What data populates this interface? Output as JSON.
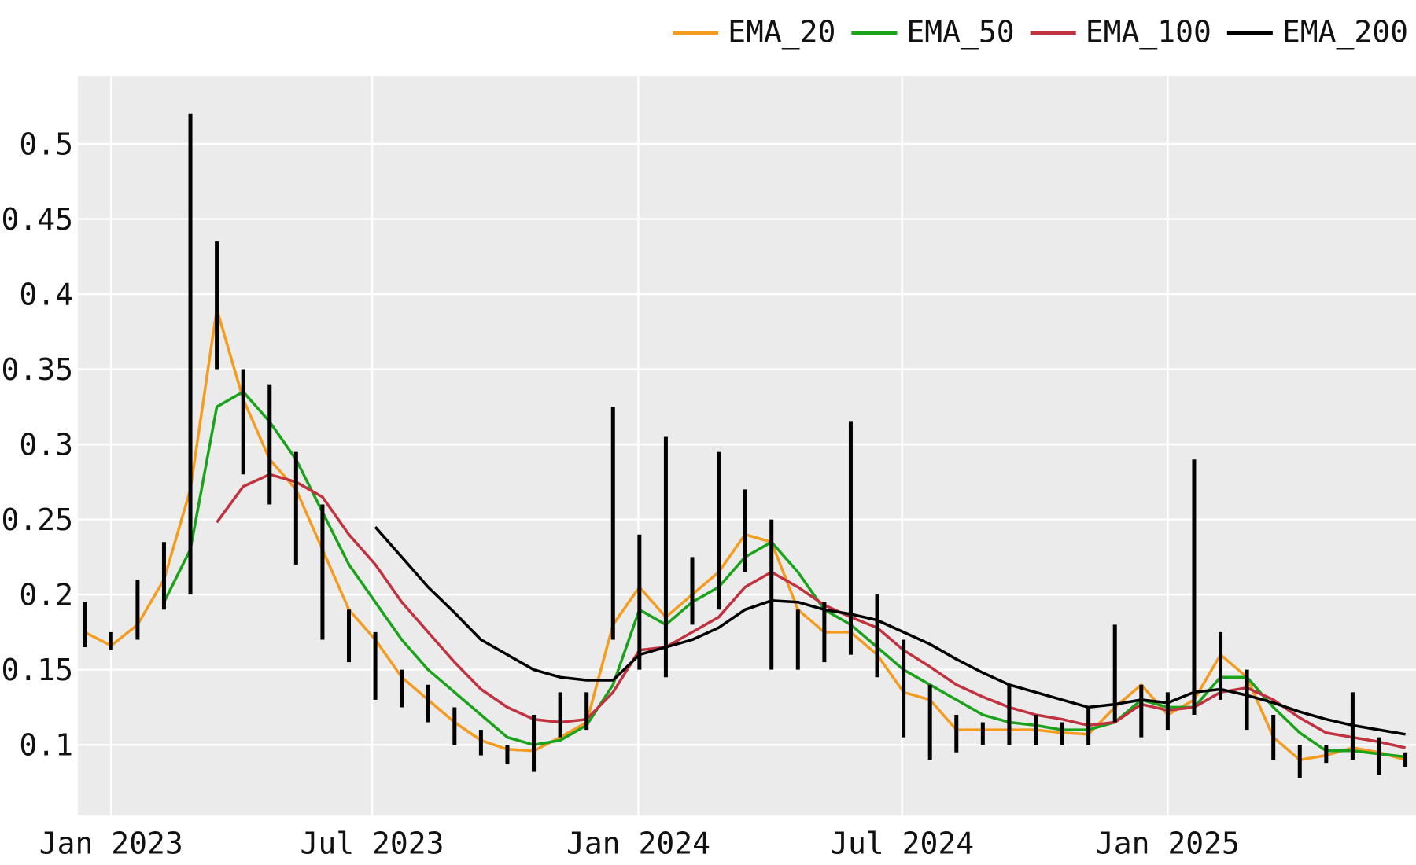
{
  "chart_data": {
    "type": "line",
    "grid": true,
    "legend": "top-right",
    "x": [
      2022.95,
      2023.0,
      2023.05,
      2023.1,
      2023.15,
      2023.2,
      2023.25,
      2023.3,
      2023.35,
      2023.4,
      2023.45,
      2023.5,
      2023.55,
      2023.6,
      2023.65,
      2023.7,
      2023.75,
      2023.8,
      2023.85,
      2023.9,
      2023.95,
      2024.0,
      2024.05,
      2024.1,
      2024.15,
      2024.2,
      2024.25,
      2024.3,
      2024.35,
      2024.4,
      2024.45,
      2024.5,
      2024.55,
      2024.6,
      2024.65,
      2024.7,
      2024.75,
      2024.8,
      2024.85,
      2024.9,
      2024.95,
      2025.0,
      2025.05,
      2025.1,
      2025.15,
      2025.2,
      2025.25,
      2025.3,
      2025.35,
      2025.4,
      2025.45
    ],
    "xlim": [
      2022.937,
      2025.47
    ],
    "xticks": [
      {
        "value": 2023.0,
        "label": "Jan 2023"
      },
      {
        "value": 2023.494,
        "label": "Jul 2023"
      },
      {
        "value": 2023.998,
        "label": "Jan 2024"
      },
      {
        "value": 2024.497,
        "label": "Jul 2024"
      },
      {
        "value": 2025.0,
        "label": "Jan 2025"
      }
    ],
    "ylim": [
      0.053,
      0.545
    ],
    "yticks": [
      0.1,
      0.15,
      0.2,
      0.25,
      0.3,
      0.35,
      0.4,
      0.45,
      0.5
    ],
    "ohlc": {
      "color": "#000000",
      "high": [
        0.195,
        0.175,
        0.21,
        0.235,
        0.52,
        0.435,
        0.35,
        0.34,
        0.295,
        0.26,
        0.19,
        0.175,
        0.15,
        0.14,
        0.125,
        0.11,
        0.1,
        0.12,
        0.135,
        0.135,
        0.325,
        0.24,
        0.305,
        0.225,
        0.295,
        0.27,
        0.25,
        0.19,
        0.195,
        0.315,
        0.2,
        0.17,
        0.14,
        0.12,
        0.115,
        0.14,
        0.12,
        0.115,
        0.125,
        0.18,
        0.14,
        0.135,
        0.29,
        0.175,
        0.15,
        0.12,
        0.1,
        0.1,
        0.135,
        0.105,
        0.095
      ],
      "low": [
        0.165,
        0.163,
        0.17,
        0.19,
        0.2,
        0.35,
        0.28,
        0.26,
        0.22,
        0.17,
        0.155,
        0.13,
        0.125,
        0.115,
        0.1,
        0.093,
        0.087,
        0.082,
        0.105,
        0.11,
        0.17,
        0.15,
        0.145,
        0.18,
        0.19,
        0.215,
        0.15,
        0.15,
        0.155,
        0.16,
        0.145,
        0.105,
        0.09,
        0.095,
        0.1,
        0.1,
        0.1,
        0.1,
        0.1,
        0.115,
        0.105,
        0.11,
        0.12,
        0.13,
        0.11,
        0.09,
        0.078,
        0.088,
        0.09,
        0.08,
        0.085
      ]
    },
    "series": [
      {
        "name": "EMA_20",
        "color": "#f39c1f",
        "values": [
          0.175,
          0.166,
          0.18,
          0.21,
          0.27,
          0.39,
          0.33,
          0.29,
          0.27,
          0.23,
          0.19,
          0.17,
          0.145,
          0.13,
          0.115,
          0.103,
          0.097,
          0.096,
          0.105,
          0.115,
          0.18,
          0.205,
          0.185,
          0.2,
          0.215,
          0.24,
          0.235,
          0.19,
          0.175,
          0.175,
          0.16,
          0.135,
          0.13,
          0.11,
          0.11,
          0.11,
          0.11,
          0.108,
          0.107,
          0.125,
          0.14,
          0.12,
          0.13,
          0.16,
          0.145,
          0.105,
          0.09,
          0.093,
          0.098,
          0.095,
          0.09
        ]
      },
      {
        "name": "EMA_50",
        "color": "#1aa31a",
        "values": [
          null,
          null,
          null,
          0.195,
          0.23,
          0.325,
          0.335,
          0.315,
          0.29,
          0.255,
          0.22,
          0.195,
          0.17,
          0.15,
          0.135,
          0.12,
          0.105,
          0.1,
          0.103,
          0.113,
          0.14,
          0.19,
          0.18,
          0.195,
          0.205,
          0.225,
          0.235,
          0.215,
          0.19,
          0.18,
          0.165,
          0.15,
          0.14,
          0.13,
          0.12,
          0.115,
          0.113,
          0.11,
          0.11,
          0.115,
          0.13,
          0.125,
          0.125,
          0.145,
          0.145,
          0.125,
          0.108,
          0.096,
          0.096,
          0.094,
          0.092
        ]
      },
      {
        "name": "EMA_100",
        "color": "#c0323f",
        "values": [
          null,
          null,
          null,
          null,
          null,
          0.248,
          0.272,
          0.28,
          0.275,
          0.265,
          0.24,
          0.22,
          0.195,
          0.175,
          0.155,
          0.137,
          0.125,
          0.117,
          0.115,
          0.117,
          0.135,
          0.163,
          0.165,
          0.175,
          0.185,
          0.205,
          0.215,
          0.205,
          0.193,
          0.185,
          0.178,
          0.163,
          0.152,
          0.14,
          0.132,
          0.125,
          0.12,
          0.117,
          0.113,
          0.115,
          0.127,
          0.123,
          0.125,
          0.135,
          0.138,
          0.13,
          0.118,
          0.108,
          0.105,
          0.102,
          0.098
        ]
      },
      {
        "name": "EMA_200",
        "color": "#000000",
        "values": [
          null,
          null,
          null,
          null,
          null,
          null,
          null,
          null,
          null,
          null,
          null,
          0.245,
          0.225,
          0.205,
          0.188,
          0.17,
          0.16,
          0.15,
          0.145,
          0.143,
          0.143,
          0.16,
          0.165,
          0.17,
          0.178,
          0.19,
          0.196,
          0.195,
          0.19,
          0.187,
          0.183,
          0.175,
          0.167,
          0.157,
          0.148,
          0.14,
          0.135,
          0.13,
          0.125,
          0.127,
          0.13,
          0.128,
          0.135,
          0.137,
          0.133,
          0.128,
          0.122,
          0.117,
          0.113,
          0.11,
          0.107
        ]
      }
    ]
  }
}
